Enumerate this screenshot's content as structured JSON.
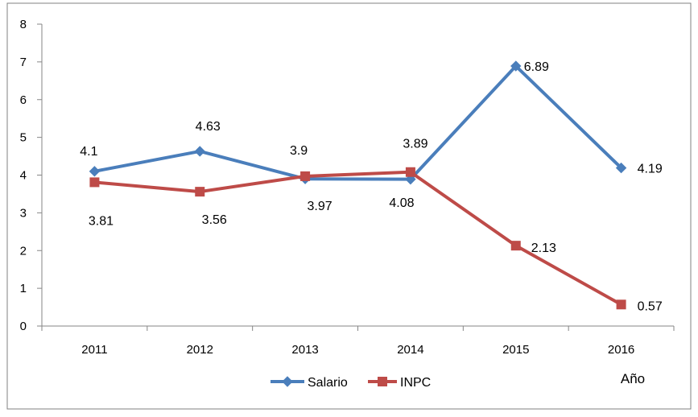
{
  "chart_data": {
    "type": "line",
    "categories": [
      "2011",
      "2012",
      "2013",
      "2014",
      "2015",
      "2016"
    ],
    "series": [
      {
        "name": "Salario",
        "values": [
          4.1,
          4.63,
          3.9,
          3.89,
          6.89,
          4.19
        ],
        "color": "#4A7EBB",
        "marker": "diamond"
      },
      {
        "name": "INPC",
        "values": [
          3.81,
          3.56,
          3.97,
          4.08,
          2.13,
          0.57
        ],
        "color": "#BE4B48",
        "marker": "square"
      }
    ],
    "data_labels": {
      "Salario": [
        "4.1",
        "4.63",
        "3.9",
        "3.89",
        "6.89",
        "4.19"
      ],
      "INPC": [
        "3.81",
        "3.56",
        "3.97",
        "4.08",
        "2.13",
        "0.57"
      ]
    },
    "y_ticks": [
      "0",
      "1",
      "2",
      "3",
      "4",
      "5",
      "6",
      "7",
      "8"
    ],
    "ylim": [
      0,
      8
    ],
    "xlabel": "Año",
    "ylabel": "",
    "title": "",
    "grid": false,
    "legend_position": "bottom"
  }
}
